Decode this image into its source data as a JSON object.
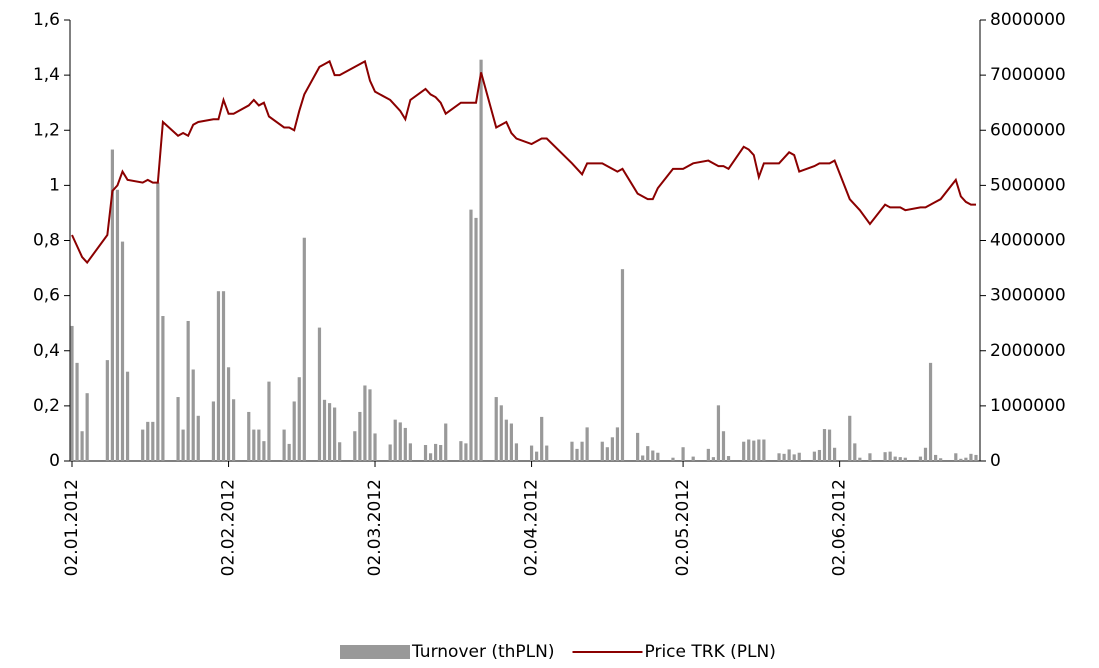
{
  "chart_data": {
    "type": "combo",
    "x": [
      "02.01.2012",
      "03.01.2012",
      "04.01.2012",
      "05.01.2012",
      "09.01.2012",
      "10.01.2012",
      "11.01.2012",
      "12.01.2012",
      "13.01.2012",
      "16.01.2012",
      "17.01.2012",
      "18.01.2012",
      "19.01.2012",
      "20.01.2012",
      "23.01.2012",
      "24.01.2012",
      "25.01.2012",
      "26.01.2012",
      "27.01.2012",
      "30.01.2012",
      "31.01.2012",
      "01.02.2012",
      "02.02.2012",
      "03.02.2012",
      "06.02.2012",
      "07.02.2012",
      "08.02.2012",
      "09.02.2012",
      "10.02.2012",
      "13.02.2012",
      "14.02.2012",
      "15.02.2012",
      "16.02.2012",
      "17.02.2012",
      "20.02.2012",
      "21.02.2012",
      "22.02.2012",
      "23.02.2012",
      "24.02.2012",
      "27.02.2012",
      "28.02.2012",
      "29.02.2012",
      "01.03.2012",
      "02.03.2012",
      "05.03.2012",
      "06.03.2012",
      "07.03.2012",
      "08.03.2012",
      "09.03.2012",
      "12.03.2012",
      "13.03.2012",
      "14.03.2012",
      "15.03.2012",
      "16.03.2012",
      "19.03.2012",
      "20.03.2012",
      "21.03.2012",
      "22.03.2012",
      "23.03.2012",
      "26.03.2012",
      "27.03.2012",
      "28.03.2012",
      "29.03.2012",
      "30.03.2012",
      "02.04.2012",
      "03.04.2012",
      "04.04.2012",
      "05.04.2012",
      "10.04.2012",
      "11.04.2012",
      "12.04.2012",
      "13.04.2012",
      "16.04.2012",
      "17.04.2012",
      "18.04.2012",
      "19.04.2012",
      "20.04.2012",
      "23.04.2012",
      "24.04.2012",
      "25.04.2012",
      "26.04.2012",
      "27.04.2012",
      "30.04.2012",
      "02.05.2012",
      "04.05.2012",
      "07.05.2012",
      "08.05.2012",
      "09.05.2012",
      "10.05.2012",
      "11.05.2012",
      "14.05.2012",
      "15.05.2012",
      "16.05.2012",
      "17.05.2012",
      "18.05.2012",
      "21.05.2012",
      "22.05.2012",
      "23.05.2012",
      "24.05.2012",
      "25.05.2012",
      "28.05.2012",
      "29.05.2012",
      "30.05.2012",
      "31.05.2012",
      "01.06.2012",
      "04.06.2012",
      "05.06.2012",
      "06.06.2012",
      "08.06.2012",
      "11.06.2012",
      "12.06.2012",
      "13.06.2012",
      "14.06.2012",
      "15.06.2012",
      "18.06.2012",
      "19.06.2012",
      "20.06.2012",
      "21.06.2012",
      "22.06.2012",
      "25.06.2012",
      "26.06.2012",
      "27.06.2012",
      "28.06.2012",
      "29.06.2012"
    ],
    "series": [
      {
        "name": "Turnover (thPLN)",
        "type": "bar",
        "axis": "y2",
        "color": "#999999",
        "values": [
          2450000,
          1780000,
          540000,
          1230000,
          1830000,
          5650000,
          4920000,
          3980000,
          1620000,
          570000,
          710000,
          710000,
          5050000,
          2630000,
          1160000,
          570000,
          2540000,
          1660000,
          820000,
          1080000,
          3080000,
          3080000,
          1700000,
          1120000,
          890000,
          570000,
          570000,
          360000,
          1440000,
          570000,
          310000,
          1080000,
          1520000,
          4050000,
          2420000,
          1110000,
          1050000,
          970000,
          340000,
          540000,
          890000,
          1370000,
          1300000,
          500000,
          300000,
          750000,
          700000,
          600000,
          320000,
          290000,
          140000,
          310000,
          290000,
          680000,
          360000,
          320000,
          4560000,
          4410000,
          7280000,
          1160000,
          1010000,
          750000,
          680000,
          320000,
          280000,
          170000,
          800000,
          280000,
          350000,
          220000,
          350000,
          610000,
          350000,
          250000,
          430000,
          610000,
          3480000,
          510000,
          100000,
          270000,
          190000,
          150000,
          60000,
          250000,
          80000,
          220000,
          70000,
          1010000,
          540000,
          90000,
          350000,
          390000,
          370000,
          390000,
          390000,
          140000,
          130000,
          210000,
          120000,
          150000,
          170000,
          200000,
          580000,
          570000,
          240000,
          820000,
          320000,
          60000,
          140000,
          160000,
          170000,
          80000,
          70000,
          60000,
          80000,
          240000,
          1780000,
          110000,
          50000,
          140000,
          40000,
          60000,
          130000,
          110000
        ]
      },
      {
        "name": "Price TRK (PLN)",
        "type": "line",
        "color": "#8b0000",
        "values": [
          0.82,
          0.78,
          0.74,
          0.72,
          0.82,
          0.98,
          1.0,
          1.05,
          1.02,
          1.01,
          1.02,
          1.01,
          1.01,
          1.23,
          1.18,
          1.19,
          1.18,
          1.22,
          1.23,
          1.24,
          1.24,
          1.31,
          1.26,
          1.26,
          1.29,
          1.31,
          1.29,
          1.3,
          1.25,
          1.21,
          1.21,
          1.2,
          1.27,
          1.33,
          1.43,
          1.44,
          1.45,
          1.4,
          1.4,
          1.43,
          1.44,
          1.45,
          1.38,
          1.34,
          1.31,
          1.29,
          1.27,
          1.24,
          1.31,
          1.35,
          1.33,
          1.32,
          1.3,
          1.26,
          1.3,
          1.3,
          1.3,
          1.3,
          1.41,
          1.21,
          1.22,
          1.23,
          1.19,
          1.17,
          1.15,
          1.16,
          1.17,
          1.17,
          1.08,
          1.06,
          1.04,
          1.08,
          1.08,
          1.07,
          1.06,
          1.05,
          1.06,
          0.97,
          0.96,
          0.95,
          0.95,
          0.99,
          1.06,
          1.06,
          1.08,
          1.09,
          1.08,
          1.07,
          1.07,
          1.06,
          1.14,
          1.13,
          1.11,
          1.03,
          1.08,
          1.08,
          1.1,
          1.12,
          1.11,
          1.05,
          1.07,
          1.08,
          1.08,
          1.08,
          1.09,
          0.95,
          0.93,
          0.91,
          0.86,
          0.93,
          0.92,
          0.92,
          0.92,
          0.91,
          0.92,
          0.92,
          0.93,
          0.94,
          0.95,
          1.02,
          0.96,
          0.94,
          0.93,
          0.93
        ]
      }
    ],
    "xlim": [
      "02.01.2012",
      "29.06.2012"
    ],
    "xticks": [
      "02.01.2012",
      "02.02.2012",
      "02.03.2012",
      "02.04.2012",
      "02.05.2012",
      "02.06.2012"
    ],
    "ylim": [
      0,
      1.6
    ],
    "yticks": [
      0,
      {
        "value": 0.2,
        "label": "0,2"
      },
      {
        "value": 0.4,
        "label": "0,4"
      },
      {
        "value": 0.6,
        "label": "0,6"
      },
      {
        "value": 0.8,
        "label": "0,8"
      },
      1,
      {
        "value": 1.2,
        "label": "1,2"
      },
      {
        "value": 1.4,
        "label": "1,4"
      },
      {
        "value": 1.6,
        "label": "1,6"
      }
    ],
    "y2lim": [
      0,
      8000000
    ],
    "y2ticks": [
      0,
      1000000,
      2000000,
      3000000,
      4000000,
      5000000,
      6000000,
      7000000,
      8000000
    ],
    "legend": "bottom"
  }
}
